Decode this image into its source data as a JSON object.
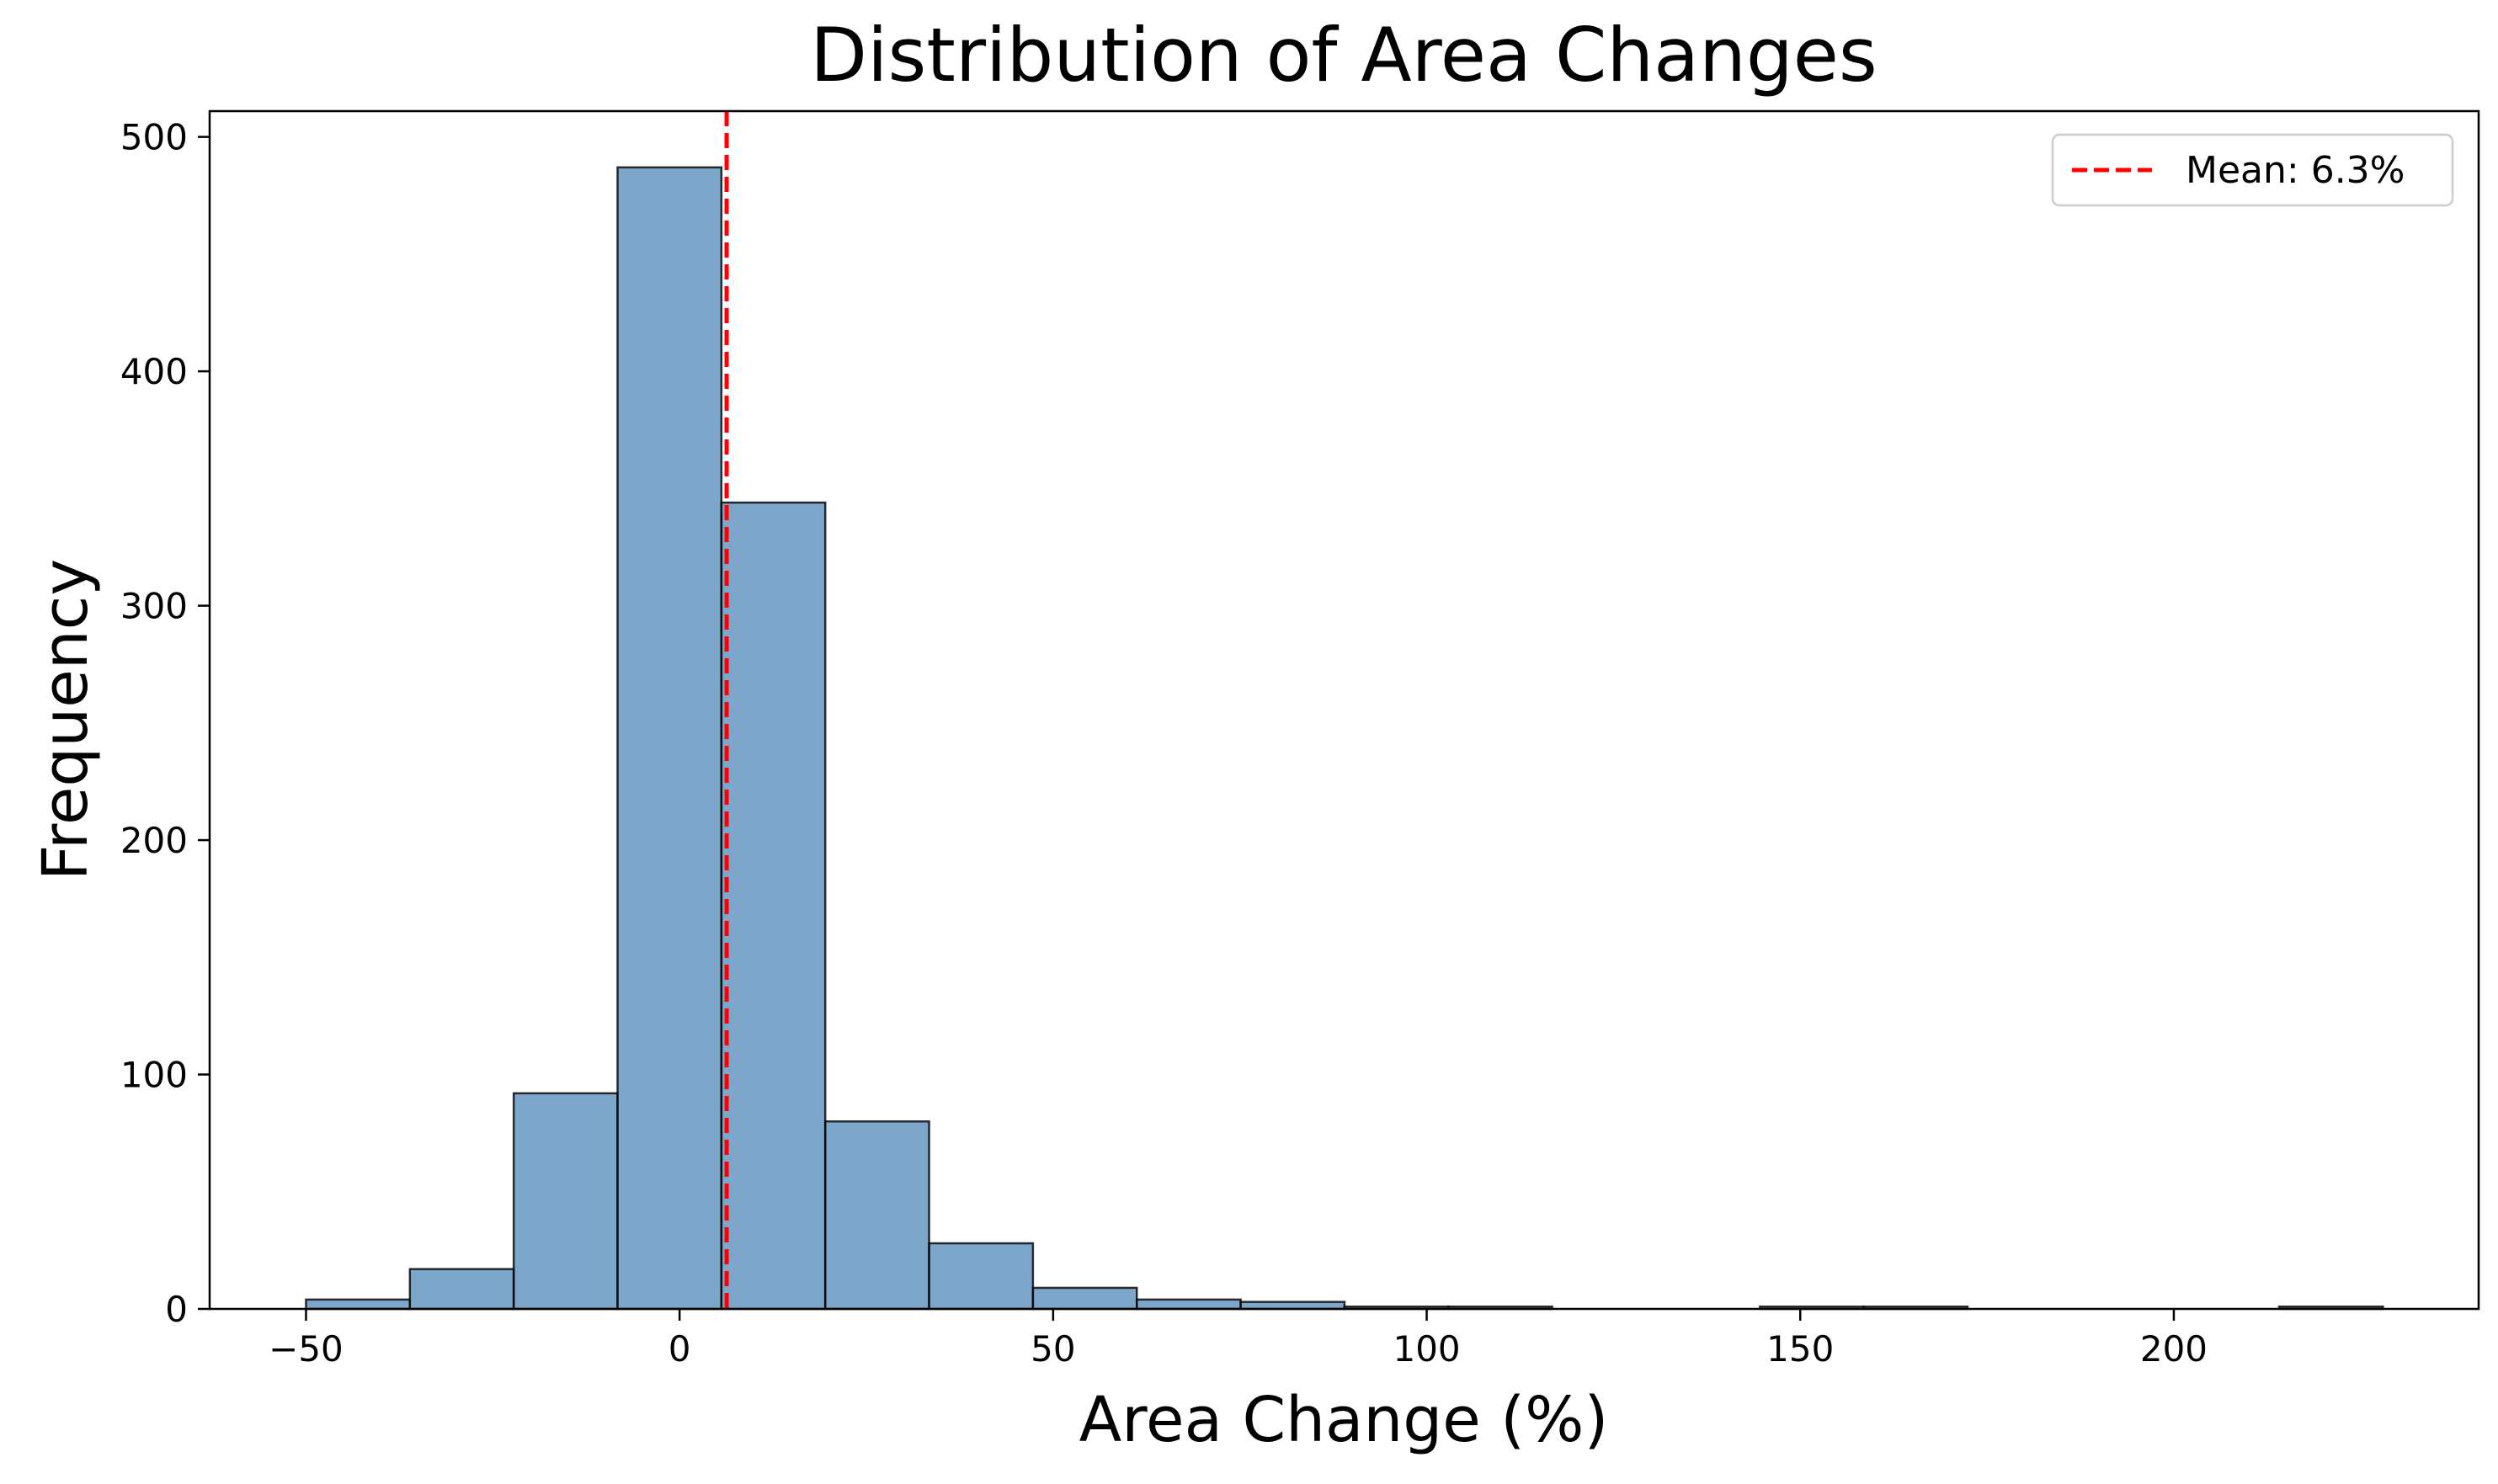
{
  "chart_data": {
    "type": "bar",
    "subtype": "histogram",
    "title": "Distribution of Area Changes",
    "xlabel": "Area Change (%)",
    "ylabel": "Frequency",
    "xlim": [
      -62.9,
      240.8
    ],
    "ylim": [
      0,
      511
    ],
    "xticks": [
      -50,
      0,
      50,
      100,
      150,
      200
    ],
    "xtick_labels": [
      "−50",
      "0",
      "50",
      "100",
      "150",
      "200"
    ],
    "yticks": [
      0,
      100,
      200,
      300,
      400,
      500
    ],
    "ytick_labels": [
      "0",
      "100",
      "200",
      "300",
      "400",
      "500"
    ],
    "grid": false,
    "bar_color": "#4682b4",
    "bar_alpha": 0.7,
    "bar_edge_color": "#000000",
    "bins": {
      "edges": [
        -50.0,
        -36.1,
        -22.2,
        -8.3,
        5.6,
        19.5,
        33.4,
        47.3,
        61.2,
        75.1,
        89.0,
        102.9,
        116.8,
        130.7,
        144.6,
        158.5,
        172.4,
        186.3,
        200.2,
        214.1,
        228.0
      ],
      "counts": [
        4,
        17,
        92,
        487,
        344,
        80,
        28,
        9,
        4,
        3,
        1,
        1,
        0,
        0,
        1,
        1,
        0,
        0,
        0,
        1
      ]
    },
    "reference_lines": [
      {
        "name": "Mean: 6.3%",
        "orientation": "vertical",
        "x": 6.3,
        "color": "#ff0000",
        "style": "dashed"
      }
    ],
    "legend": {
      "position": "top-right",
      "entries": [
        "Mean: 6.3%"
      ]
    }
  }
}
